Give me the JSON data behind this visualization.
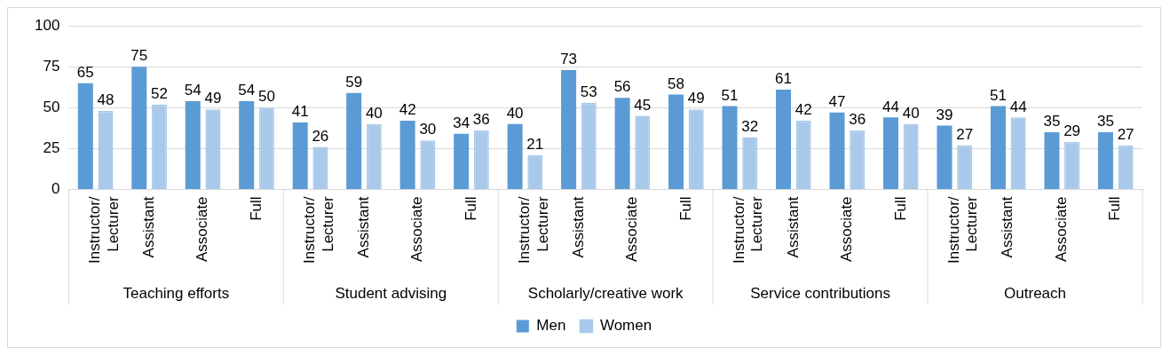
{
  "chart_data": {
    "type": "bar",
    "categories": [
      "Instructor/ Lecturer",
      "Assistant",
      "Associate",
      "Full",
      "Instructor/ Lecturer",
      "Assistant",
      "Associate",
      "Full",
      "Instructor/ Lecturer",
      "Assistant",
      "Associate",
      "Full",
      "Instructor/ Lecturer",
      "Assistant",
      "Associate",
      "Full",
      "Instructor/ Lecturer",
      "Assistant",
      "Associate",
      "Full"
    ],
    "series": [
      {
        "name": "Men",
        "color": "#5b9bd5",
        "values": [
          65,
          75,
          54,
          54,
          41,
          59,
          42,
          34,
          40,
          73,
          56,
          58,
          51,
          61,
          47,
          44,
          39,
          51,
          35,
          35
        ]
      },
      {
        "name": "Women",
        "color": "#a9c9ea",
        "values": [
          48,
          52,
          49,
          50,
          26,
          40,
          30,
          36,
          21,
          53,
          45,
          49,
          32,
          42,
          36,
          40,
          27,
          44,
          29,
          27
        ]
      }
    ],
    "annotations": [
      "Teaching efforts",
      "Student advising",
      "Scholarly/creative work",
      "Service contributions",
      "Outreach"
    ],
    "ylim": [
      0,
      100
    ],
    "yticks": [
      0,
      25,
      50,
      75,
      100
    ],
    "grid": "y",
    "data_labels": true,
    "legend": "bottom"
  }
}
